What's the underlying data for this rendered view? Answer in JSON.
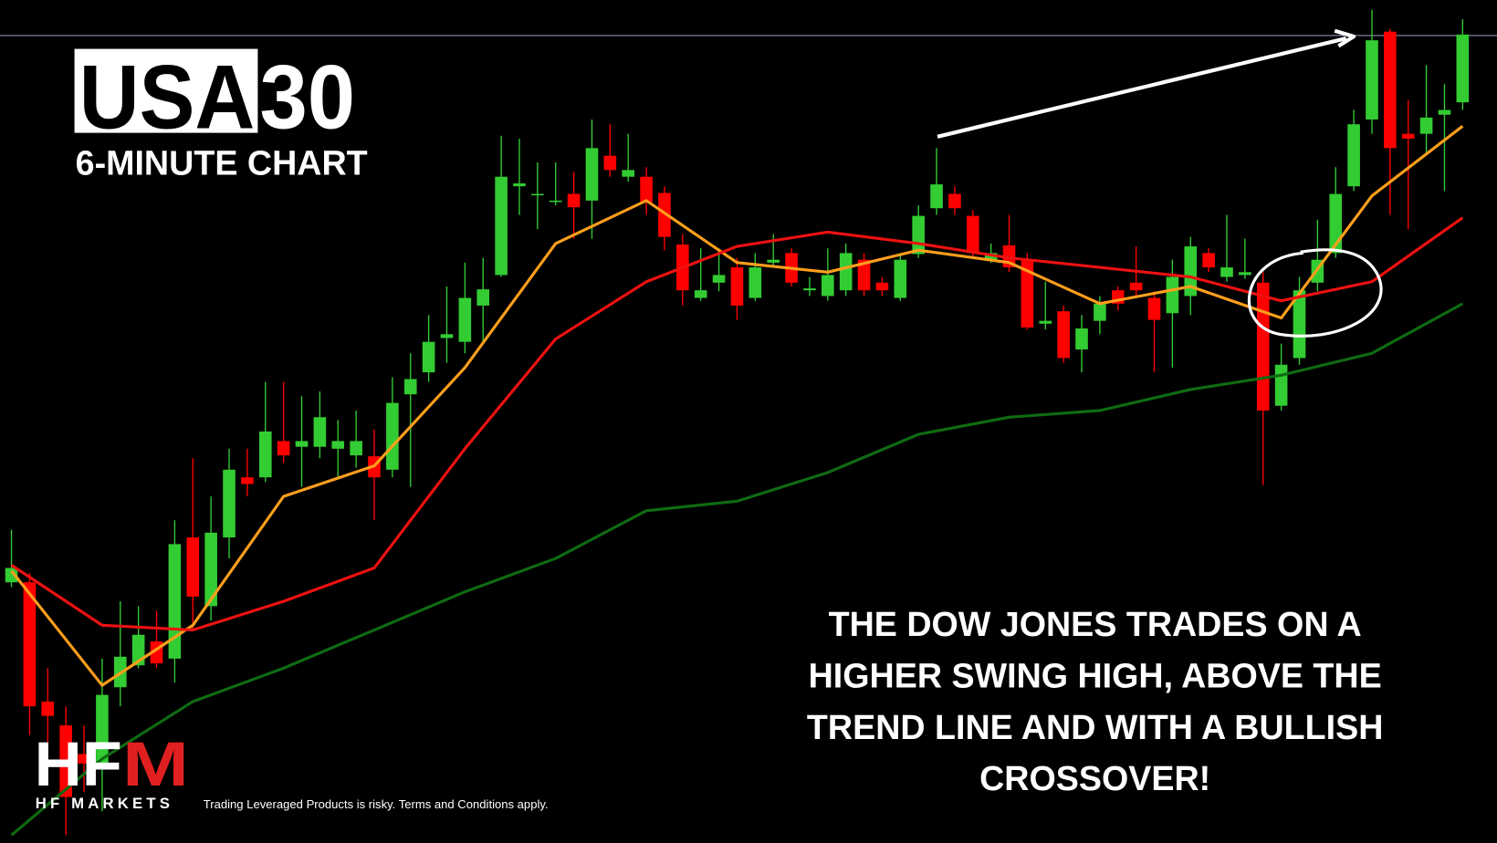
{
  "chart_data": {
    "type": "candlestick",
    "title": [
      "USA",
      "30"
    ],
    "subtitle": "6-MINUTE CHART",
    "annotation": [
      "THE DOW JONES TRADES ON A",
      "HIGHER SWING HIGH, ABOVE THE",
      "TREND LINE AND WITH A BULLISH",
      "CROSSOVER!"
    ],
    "ylim": [
      0,
      883
    ],
    "up_color": "#33cc33",
    "down_color": "#ff0000",
    "hline": 846,
    "open": [
      273,
      273,
      148,
      123,
      93,
      83,
      163,
      186,
      211,
      193,
      320,
      248,
      320,
      383,
      383,
      421,
      415,
      415,
      413,
      406,
      405,
      391,
      470,
      493,
      529,
      525,
      563,
      595,
      688,
      679,
      672,
      680,
      673,
      720,
      698,
      698,
      681,
      627,
      571,
      587,
      603,
      571,
      608,
      618,
      579,
      573,
      579,
      611,
      587,
      571,
      617,
      665,
      680,
      657,
      611,
      626,
      610,
      544,
      557,
      517,
      547,
      579,
      587,
      571,
      555,
      573,
      618,
      593,
      595,
      587,
      458,
      508,
      587,
      618,
      688,
      758,
      850,
      743,
      743,
      763,
      776
    ],
    "high": [
      328,
      283,
      183,
      143,
      123,
      193,
      253,
      248,
      243,
      338,
      403,
      363,
      413,
      413,
      483,
      483,
      468,
      473,
      443,
      453,
      433,
      488,
      513,
      553,
      583,
      608,
      613,
      741,
      738,
      713,
      713,
      703,
      758,
      753,
      743,
      708,
      688,
      638,
      623,
      623,
      613,
      618,
      638,
      623,
      593,
      623,
      628,
      618,
      593,
      618,
      668,
      728,
      688,
      663,
      628,
      658,
      618,
      588,
      563,
      553,
      573,
      583,
      625,
      578,
      611,
      635,
      623,
      658,
      633,
      598,
      523,
      593,
      653,
      708,
      768,
      873,
      853,
      778,
      815,
      795,
      863
    ],
    "low": [
      268,
      113,
      93,
      8,
      53,
      33,
      143,
      183,
      183,
      168,
      223,
      233,
      298,
      363,
      378,
      398,
      373,
      403,
      383,
      393,
      338,
      383,
      373,
      483,
      503,
      513,
      523,
      593,
      658,
      643,
      668,
      633,
      633,
      698,
      693,
      658,
      621,
      563,
      568,
      578,
      548,
      568,
      603,
      583,
      573,
      568,
      573,
      573,
      573,
      568,
      613,
      658,
      658,
      613,
      608,
      598,
      538,
      538,
      503,
      493,
      533,
      558,
      573,
      493,
      498,
      553,
      598,
      588,
      591,
      375,
      453,
      501,
      578,
      613,
      683,
      743,
      658,
      643,
      723,
      683,
      768
    ],
    "close": [
      288,
      143,
      133,
      48,
      83,
      155,
      195,
      218,
      188,
      313,
      258,
      325,
      391,
      376,
      431,
      406,
      421,
      446,
      421,
      421,
      383,
      461,
      486,
      525,
      533,
      571,
      580,
      698,
      691,
      680,
      673,
      666,
      728,
      705,
      705,
      671,
      635,
      579,
      579,
      595,
      563,
      603,
      611,
      587,
      581,
      595,
      618,
      579,
      579,
      611,
      657,
      690,
      665,
      618,
      618,
      603,
      540,
      547,
      508,
      539,
      565,
      565,
      579,
      548,
      593,
      625,
      603,
      603,
      598,
      453,
      501,
      579,
      611,
      680,
      753,
      841,
      728,
      738,
      760,
      768,
      847
    ],
    "series": [
      {
        "color": "#ff9f1c",
        "x": [
          0,
          5,
          10,
          15,
          20,
          25,
          30,
          35,
          40,
          45,
          50,
          55,
          60,
          65,
          70,
          75,
          80
        ],
        "values": [
          285,
          165,
          228,
          363,
          395,
          498,
          628,
          673,
          608,
          598,
          621,
          608,
          565,
          583,
          550,
          678,
          751
        ]
      },
      {
        "color": "#ee1111",
        "x": [
          0,
          5,
          10,
          15,
          20,
          25,
          30,
          35,
          40,
          45,
          50,
          55,
          60,
          65,
          70,
          75,
          80
        ],
        "values": [
          291,
          228,
          223,
          253,
          288,
          413,
          528,
          588,
          625,
          640,
          628,
          613,
          603,
          593,
          568,
          588,
          655
        ]
      },
      {
        "color": "#0f6b12",
        "x": [
          0,
          5,
          10,
          15,
          20,
          25,
          30,
          35,
          40,
          45,
          50,
          55,
          60,
          65,
          70,
          75,
          80
        ],
        "values": [
          8,
          88,
          148,
          183,
          223,
          263,
          298,
          348,
          358,
          388,
          428,
          446,
          453,
          475,
          490,
          513,
          565
        ]
      }
    ]
  },
  "logo": {
    "mark": [
      "HF",
      "M"
    ],
    "name": "HF MARKETS"
  },
  "disclaimer": "Trading Leveraged Products is risky. Terms and Conditions apply."
}
